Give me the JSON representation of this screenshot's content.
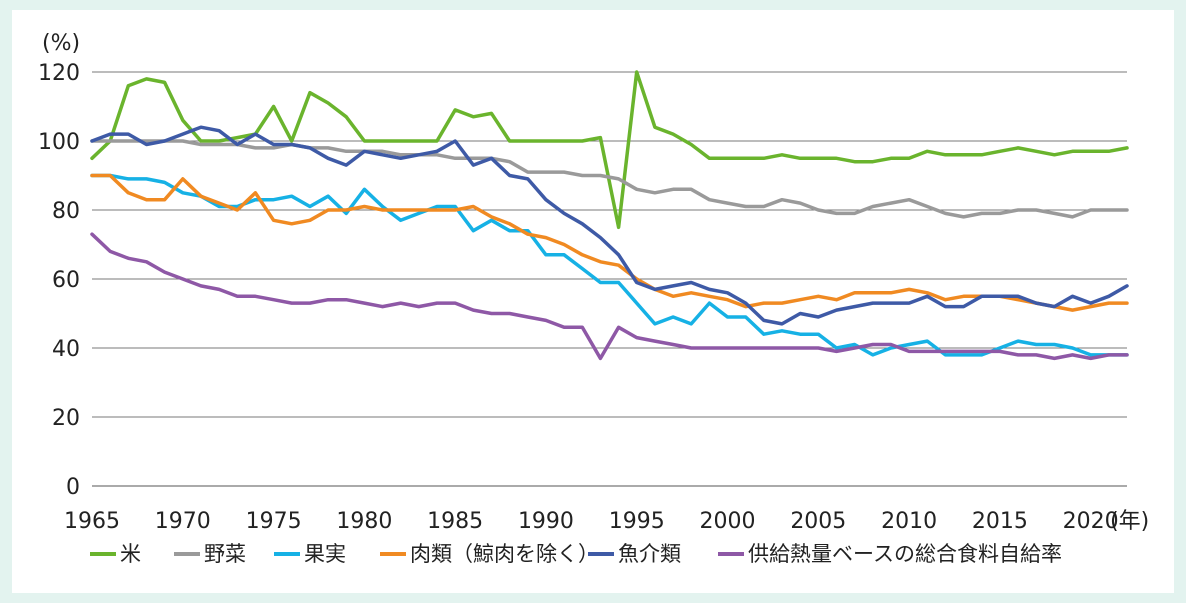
{
  "chart_data": {
    "type": "line",
    "title": "",
    "xlabel": "",
    "ylabel": "",
    "y_unit": "(%)",
    "x_unit": "(年)",
    "ylim": [
      0,
      120
    ],
    "xlim": [
      1965,
      2022
    ],
    "y_ticks": [
      "0",
      "20",
      "40",
      "60",
      "80",
      "100",
      "120"
    ],
    "x_ticks": [
      "1965",
      "1970",
      "1975",
      "1980",
      "1985",
      "1990",
      "1995",
      "2000",
      "2005",
      "2010",
      "2015",
      "2020"
    ],
    "grid": "horizontal",
    "legend_position": "bottom",
    "x": [
      1965,
      1966,
      1967,
      1968,
      1969,
      1970,
      1971,
      1972,
      1973,
      1974,
      1975,
      1976,
      1977,
      1978,
      1979,
      1980,
      1981,
      1982,
      1983,
      1984,
      1985,
      1986,
      1987,
      1988,
      1989,
      1990,
      1991,
      1992,
      1993,
      1994,
      1995,
      1996,
      1997,
      1998,
      1999,
      2000,
      2001,
      2002,
      2003,
      2004,
      2005,
      2006,
      2007,
      2008,
      2009,
      2010,
      2011,
      2012,
      2013,
      2014,
      2015,
      2016,
      2017,
      2018,
      2019,
      2020,
      2021,
      2022
    ],
    "series": [
      {
        "name": "米",
        "color": "#6ab42d",
        "values": [
          95,
          100,
          116,
          118,
          117,
          106,
          100,
          100,
          101,
          102,
          110,
          100,
          114,
          111,
          107,
          100,
          100,
          100,
          100,
          100,
          109,
          107,
          108,
          100,
          100,
          100,
          100,
          100,
          101,
          75,
          120,
          104,
          102,
          99,
          95,
          95,
          95,
          95,
          96,
          95,
          95,
          95,
          94,
          94,
          95,
          95,
          97,
          96,
          96,
          96,
          97,
          98,
          97,
          96,
          97,
          97,
          97,
          98
        ]
      },
      {
        "name": "野菜",
        "color": "#9a9a9a",
        "values": [
          100,
          100,
          100,
          100,
          100,
          100,
          99,
          99,
          99,
          98,
          98,
          99,
          98,
          98,
          97,
          97,
          97,
          96,
          96,
          96,
          95,
          95,
          95,
          94,
          91,
          91,
          91,
          90,
          90,
          89,
          86,
          85,
          86,
          86,
          83,
          82,
          81,
          81,
          83,
          82,
          80,
          79,
          79,
          81,
          82,
          83,
          81,
          79,
          78,
          79,
          79,
          80,
          80,
          79,
          78,
          80,
          80,
          80
        ]
      },
      {
        "name": "果実",
        "color": "#16b1e5",
        "values": [
          90,
          90,
          89,
          89,
          88,
          85,
          84,
          81,
          81,
          83,
          83,
          84,
          81,
          84,
          79,
          86,
          81,
          77,
          79,
          81,
          81,
          74,
          77,
          74,
          74,
          67,
          67,
          63,
          59,
          59,
          53,
          47,
          49,
          47,
          53,
          49,
          49,
          44,
          45,
          44,
          44,
          40,
          41,
          38,
          40,
          41,
          42,
          38,
          38,
          38,
          40,
          42,
          41,
          41,
          40,
          38,
          38,
          38
        ]
      },
      {
        "name": "肉類（鯨肉を除く）",
        "color": "#f08a22",
        "values": [
          90,
          90,
          85,
          83,
          83,
          89,
          84,
          82,
          80,
          85,
          77,
          76,
          77,
          80,
          80,
          81,
          80,
          80,
          80,
          80,
          80,
          81,
          78,
          76,
          73,
          72,
          70,
          67,
          65,
          64,
          60,
          57,
          55,
          56,
          55,
          54,
          52,
          53,
          53,
          54,
          55,
          54,
          56,
          56,
          56,
          57,
          56,
          54,
          55,
          55,
          55,
          54,
          53,
          52,
          51,
          52,
          53,
          53
        ]
      },
      {
        "name": "魚介類",
        "color": "#3e5aa6",
        "values": [
          100,
          102,
          102,
          99,
          100,
          102,
          104,
          103,
          99,
          102,
          99,
          99,
          98,
          95,
          93,
          97,
          96,
          95,
          96,
          97,
          100,
          93,
          95,
          90,
          89,
          83,
          79,
          76,
          72,
          67,
          59,
          57,
          58,
          59,
          57,
          56,
          53,
          48,
          47,
          50,
          49,
          51,
          52,
          53,
          53,
          53,
          55,
          52,
          52,
          55,
          55,
          55,
          53,
          52,
          55,
          53,
          55,
          58
        ]
      },
      {
        "name": "供給熱量ベースの総合食料自給率",
        "color": "#8e58a6",
        "values": [
          73,
          68,
          66,
          65,
          62,
          60,
          58,
          57,
          55,
          55,
          54,
          53,
          53,
          54,
          54,
          53,
          52,
          53,
          52,
          53,
          53,
          51,
          50,
          50,
          49,
          48,
          46,
          46,
          37,
          46,
          43,
          42,
          41,
          40,
          40,
          40,
          40,
          40,
          40,
          40,
          40,
          39,
          40,
          41,
          41,
          39,
          39,
          39,
          39,
          39,
          39,
          38,
          38,
          37,
          38,
          37,
          38,
          38
        ]
      }
    ]
  }
}
